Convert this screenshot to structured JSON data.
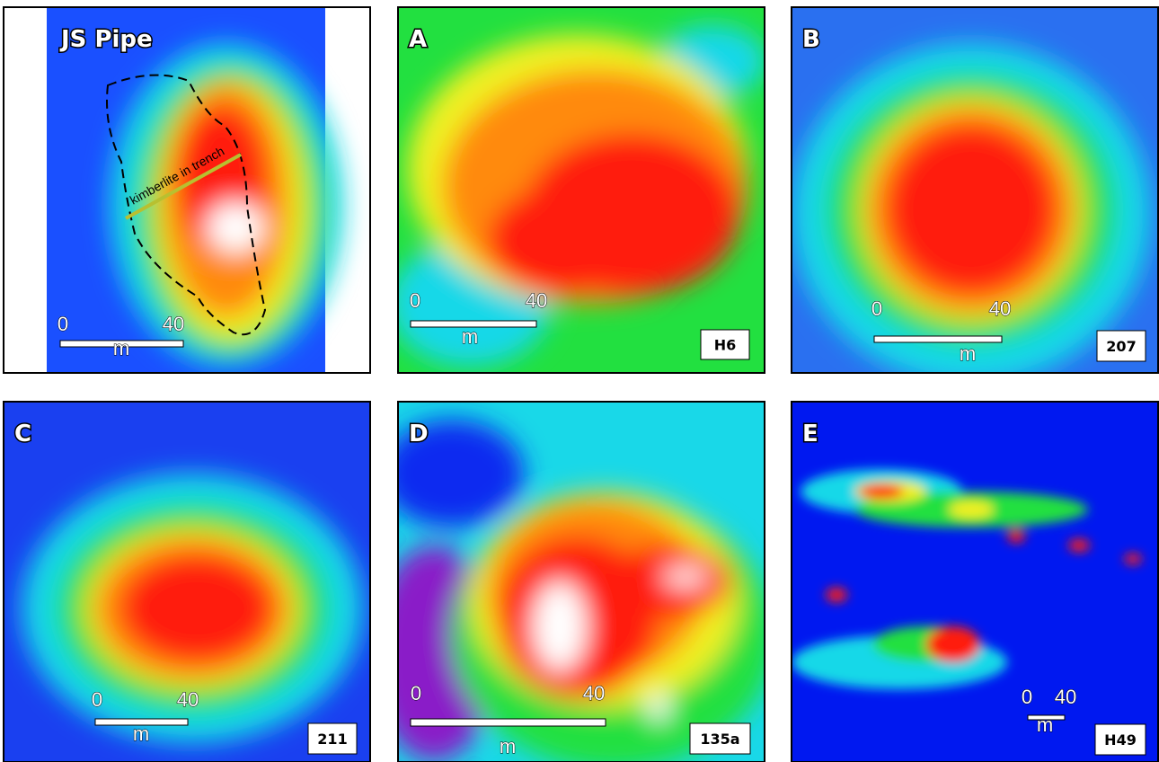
{
  "panels": [
    {
      "label": "JS Pipe",
      "annotation": "kimberlite in trench",
      "scale": {
        "start": "0",
        "end": "40",
        "unit": "m"
      }
    },
    {
      "label": "A",
      "id_label": "H6",
      "scale": {
        "start": "0",
        "end": "40",
        "unit": "m"
      }
    },
    {
      "label": "B",
      "id_label": "207",
      "scale": {
        "start": "0",
        "end": "40",
        "unit": "m"
      }
    },
    {
      "label": "C",
      "id_label": "211",
      "scale": {
        "start": "0",
        "end": "40",
        "unit": "m"
      }
    },
    {
      "label": "D",
      "id_label": "135a",
      "scale": {
        "start": "0",
        "end": "40",
        "unit": "m"
      }
    },
    {
      "label": "E",
      "id_label": "H49",
      "scale": {
        "start": "0",
        "end": "40",
        "unit": "m"
      }
    }
  ]
}
